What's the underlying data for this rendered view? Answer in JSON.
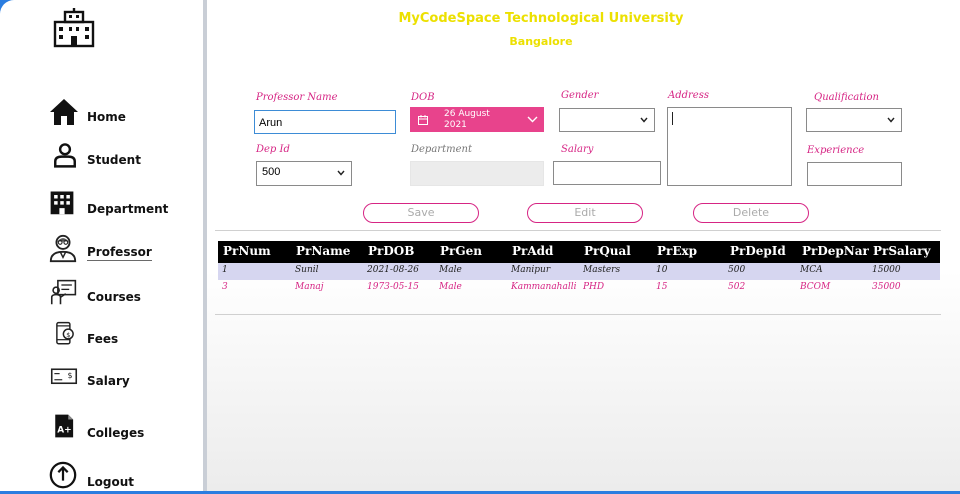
{
  "sidebar": {
    "items": [
      {
        "label": "Home",
        "icon": "home-icon"
      },
      {
        "label": "Student",
        "icon": "student-icon"
      },
      {
        "label": "Department",
        "icon": "department-icon"
      },
      {
        "label": "Professor",
        "icon": "professor-icon"
      },
      {
        "label": "Courses",
        "icon": "courses-icon"
      },
      {
        "label": "Fees",
        "icon": "fees-icon"
      },
      {
        "label": "Salary",
        "icon": "salary-icon"
      },
      {
        "label": "Colleges",
        "icon": "colleges-icon"
      },
      {
        "label": "Logout",
        "icon": "logout-icon"
      }
    ],
    "active": "Professor"
  },
  "header": {
    "title": "MyCodeSpace Technological University",
    "subtitle": "Bangalore"
  },
  "form": {
    "professor_name": {
      "label": "Professor Name",
      "value": "Arun"
    },
    "dob": {
      "label": "DOB",
      "value_line1": "26 August",
      "value_line2": "2021"
    },
    "gender": {
      "label": "Gender",
      "value": ""
    },
    "address": {
      "label": "Address",
      "value": ""
    },
    "qualification": {
      "label": "Qualification",
      "value": ""
    },
    "dep_id": {
      "label": "Dep Id",
      "value": "500"
    },
    "department": {
      "label": "Department",
      "value": ""
    },
    "salary": {
      "label": "Salary",
      "value": ""
    },
    "experience": {
      "label": "Experience",
      "value": ""
    }
  },
  "buttons": {
    "save": "Save",
    "edit": "Edit",
    "delete": "Delete"
  },
  "table": {
    "columns": [
      "PrNum",
      "PrName",
      "PrDOB",
      "PrGen",
      "PrAdd",
      "PrQual",
      "PrExp",
      "PrDepId",
      "PrDepNar",
      "PrSalary"
    ],
    "rows": [
      [
        "1",
        "Sunil",
        "2021-08-26",
        "Male",
        "Manipur",
        "Masters",
        "10",
        "500",
        "MCA",
        "15000"
      ],
      [
        "3",
        "Manaj",
        "1973-05-15",
        "Male",
        "Kammanahalli...",
        "PHD",
        "15",
        "502",
        "BCOM",
        "35000"
      ]
    ]
  },
  "colors": {
    "accent_pink": "#d62584",
    "title_yellow": "#ece000",
    "frame_blue": "#2b7de0"
  }
}
